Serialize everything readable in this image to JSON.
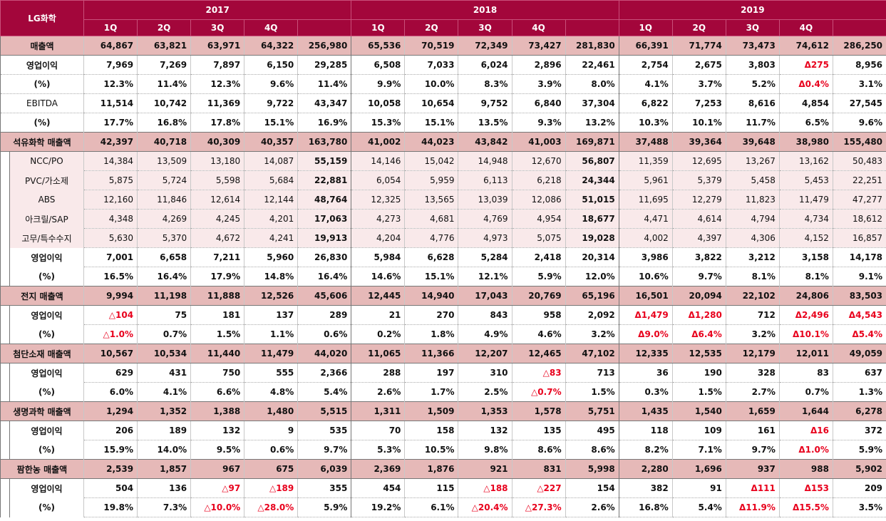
{
  "corner_label": "LG화학",
  "years": [
    "2017",
    "2018",
    "2019"
  ],
  "quarters": [
    "1Q",
    "2Q",
    "3Q",
    "4Q"
  ],
  "negative_color": "#e8001c",
  "header_color": "#a3063b",
  "rows": [
    {
      "label": "매출액",
      "type": "seg",
      "values": [
        "64,867",
        "63,821",
        "63,971",
        "64,322",
        "256,980",
        "65,536",
        "70,519",
        "72,349",
        "73,427",
        "281,830",
        "66,391",
        "71,774",
        "73,473",
        "74,612",
        "286,250"
      ]
    },
    {
      "label": "영업이익",
      "type": "plain",
      "values": [
        "7,969",
        "7,269",
        "7,897",
        "6,150",
        "29,285",
        "6,508",
        "7,033",
        "6,024",
        "2,896",
        "22,461",
        "2,754",
        "2,675",
        "3,803",
        "Δ275",
        "8,956"
      ]
    },
    {
      "label": "(%)",
      "type": "plain",
      "values": [
        "12.3%",
        "11.4%",
        "12.3%",
        "9.6%",
        "11.4%",
        "9.9%",
        "10.0%",
        "8.3%",
        "3.9%",
        "8.0%",
        "4.1%",
        "3.7%",
        "5.2%",
        "Δ0.4%",
        "3.1%"
      ]
    },
    {
      "label": "EBITDA",
      "type": "plain-normal",
      "values": [
        "11,514",
        "10,742",
        "11,369",
        "9,722",
        "43,347",
        "10,058",
        "10,654",
        "9,752",
        "6,840",
        "37,304",
        "6,822",
        "7,253",
        "8,616",
        "4,854",
        "27,545"
      ]
    },
    {
      "label": "(%)",
      "type": "plain",
      "values": [
        "17.7%",
        "16.8%",
        "17.8%",
        "15.1%",
        "16.9%",
        "15.3%",
        "15.1%",
        "13.5%",
        "9.3%",
        "13.2%",
        "10.3%",
        "10.1%",
        "11.7%",
        "6.5%",
        "9.6%"
      ]
    },
    {
      "label": "석유화학 매출액",
      "type": "seg",
      "values": [
        "42,397",
        "40,718",
        "40,309",
        "40,357",
        "163,780",
        "41,002",
        "44,023",
        "43,842",
        "41,003",
        "169,871",
        "37,488",
        "39,364",
        "39,648",
        "38,980",
        "155,480"
      ]
    },
    {
      "label": "NCC/PO",
      "type": "sub",
      "values": [
        "14,384",
        "13,509",
        "13,180",
        "14,087",
        "55,159",
        "14,146",
        "15,042",
        "14,948",
        "12,670",
        "56,807",
        "11,359",
        "12,695",
        "13,267",
        "13,162",
        "50,483"
      ]
    },
    {
      "label": "PVC/가소제",
      "type": "sub",
      "values": [
        "5,875",
        "5,724",
        "5,598",
        "5,684",
        "22,881",
        "6,054",
        "5,959",
        "6,113",
        "6,218",
        "24,344",
        "5,961",
        "5,379",
        "5,458",
        "5,453",
        "22,251"
      ]
    },
    {
      "label": "ABS",
      "type": "sub",
      "values": [
        "12,160",
        "11,846",
        "12,614",
        "12,144",
        "48,764",
        "12,325",
        "13,565",
        "13,039",
        "12,086",
        "51,015",
        "11,695",
        "12,279",
        "11,823",
        "11,479",
        "47,277"
      ]
    },
    {
      "label": "아크릴/SAP",
      "type": "sub",
      "values": [
        "4,348",
        "4,269",
        "4,245",
        "4,201",
        "17,063",
        "4,273",
        "4,681",
        "4,769",
        "4,954",
        "18,677",
        "4,471",
        "4,614",
        "4,794",
        "4,734",
        "18,612"
      ]
    },
    {
      "label": "고무/특수수지",
      "type": "sub",
      "values": [
        "5,630",
        "5,370",
        "4,672",
        "4,241",
        "19,913",
        "4,204",
        "4,776",
        "4,973",
        "5,075",
        "19,028",
        "4,002",
        "4,397",
        "4,306",
        "4,152",
        "16,857"
      ]
    },
    {
      "label": "영업이익",
      "type": "ind",
      "values": [
        "7,001",
        "6,658",
        "7,211",
        "5,960",
        "26,830",
        "5,984",
        "6,628",
        "5,284",
        "2,418",
        "20,314",
        "3,986",
        "3,822",
        "3,212",
        "3,158",
        "14,178"
      ]
    },
    {
      "label": "(%)",
      "type": "ind",
      "values": [
        "16.5%",
        "16.4%",
        "17.9%",
        "14.8%",
        "16.4%",
        "14.6%",
        "15.1%",
        "12.1%",
        "5.9%",
        "12.0%",
        "10.6%",
        "9.7%",
        "8.1%",
        "8.1%",
        "9.1%"
      ]
    },
    {
      "label": "전지 매출액",
      "type": "seg",
      "values": [
        "9,994",
        "11,198",
        "11,888",
        "12,526",
        "45,606",
        "12,445",
        "14,940",
        "17,043",
        "20,769",
        "65,196",
        "16,501",
        "20,094",
        "22,102",
        "24,806",
        "83,503"
      ]
    },
    {
      "label": "영업이익",
      "type": "ind",
      "values": [
        "△104",
        "75",
        "181",
        "137",
        "289",
        "21",
        "270",
        "843",
        "958",
        "2,092",
        "Δ1,479",
        "Δ1,280",
        "712",
        "Δ2,496",
        "Δ4,543"
      ]
    },
    {
      "label": "(%)",
      "type": "ind",
      "values": [
        "△1.0%",
        "0.7%",
        "1.5%",
        "1.1%",
        "0.6%",
        "0.2%",
        "1.8%",
        "4.9%",
        "4.6%",
        "3.2%",
        "Δ9.0%",
        "Δ6.4%",
        "3.2%",
        "Δ10.1%",
        "Δ5.4%"
      ]
    },
    {
      "label": "첨단소재 매출액",
      "type": "seg",
      "values": [
        "10,567",
        "10,534",
        "11,440",
        "11,479",
        "44,020",
        "11,065",
        "11,366",
        "12,207",
        "12,465",
        "47,102",
        "12,335",
        "12,535",
        "12,179",
        "12,011",
        "49,059"
      ]
    },
    {
      "label": "영업이익",
      "type": "ind",
      "values": [
        "629",
        "431",
        "750",
        "555",
        "2,366",
        "288",
        "197",
        "310",
        "△83",
        "713",
        "36",
        "190",
        "328",
        "83",
        "637"
      ]
    },
    {
      "label": "(%)",
      "type": "ind",
      "values": [
        "6.0%",
        "4.1%",
        "6.6%",
        "4.8%",
        "5.4%",
        "2.6%",
        "1.7%",
        "2.5%",
        "△0.7%",
        "1.5%",
        "0.3%",
        "1.5%",
        "2.7%",
        "0.7%",
        "1.3%"
      ]
    },
    {
      "label": "생명과학 매출액",
      "type": "seg",
      "values": [
        "1,294",
        "1,352",
        "1,388",
        "1,480",
        "5,515",
        "1,311",
        "1,509",
        "1,353",
        "1,578",
        "5,751",
        "1,435",
        "1,540",
        "1,659",
        "1,644",
        "6,278"
      ]
    },
    {
      "label": "영업이익",
      "type": "ind",
      "values": [
        "206",
        "189",
        "132",
        "9",
        "535",
        "70",
        "158",
        "132",
        "135",
        "495",
        "118",
        "109",
        "161",
        "Δ16",
        "372"
      ]
    },
    {
      "label": "(%)",
      "type": "ind",
      "values": [
        "15.9%",
        "14.0%",
        "9.5%",
        "0.6%",
        "9.7%",
        "5.3%",
        "10.5%",
        "9.8%",
        "8.6%",
        "8.6%",
        "8.2%",
        "7.1%",
        "9.7%",
        "Δ1.0%",
        "5.9%"
      ]
    },
    {
      "label": "팜한농 매출액",
      "type": "seg",
      "values": [
        "2,539",
        "1,857",
        "967",
        "675",
        "6,039",
        "2,369",
        "1,876",
        "921",
        "831",
        "5,998",
        "2,280",
        "1,696",
        "937",
        "988",
        "5,902"
      ]
    },
    {
      "label": "영업이익",
      "type": "ind",
      "values": [
        "504",
        "136",
        "△97",
        "△189",
        "355",
        "454",
        "115",
        "△188",
        "△227",
        "154",
        "382",
        "91",
        "Δ111",
        "Δ153",
        "209"
      ]
    },
    {
      "label": "(%)",
      "type": "ind",
      "values": [
        "19.8%",
        "7.3%",
        "△10.0%",
        "△28.0%",
        "5.9%",
        "19.2%",
        "6.1%",
        "△20.4%",
        "△27.3%",
        "2.6%",
        "16.8%",
        "5.4%",
        "Δ11.9%",
        "Δ15.5%",
        "3.5%"
      ]
    }
  ]
}
